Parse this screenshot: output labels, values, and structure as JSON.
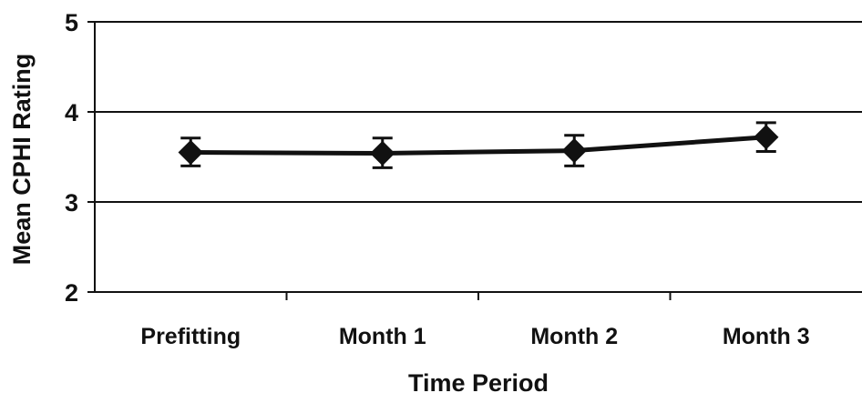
{
  "chart_data": {
    "type": "line",
    "title": "",
    "xlabel": "Time Period",
    "ylabel": "Mean CPHI Rating",
    "categories": [
      "Prefitting",
      "Month 1",
      "Month 2",
      "Month 3"
    ],
    "series": [
      {
        "values": [
          3.55,
          3.54,
          3.57,
          3.72
        ],
        "error_low": [
          3.4,
          3.38,
          3.4,
          3.56
        ],
        "error_high": [
          3.71,
          3.71,
          3.74,
          3.88
        ]
      }
    ],
    "ylim": [
      2,
      5
    ],
    "yticks": [
      "2",
      "3",
      "4",
      "5"
    ],
    "grid": "horizontal",
    "marker": "diamond",
    "line_color": "#111111"
  }
}
